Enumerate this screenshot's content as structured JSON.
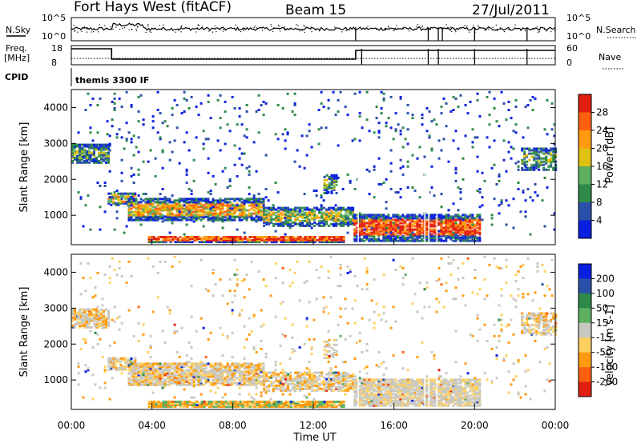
{
  "header": {
    "title": "Fort Hays West (fitACF)",
    "beam": "Beam 15",
    "date": "27/Jul/2011"
  },
  "top_panels": {
    "nsky_label": "N.Sky",
    "nsky_ticks": [
      "10^5",
      "10^0"
    ],
    "nsearch_label": "N.Search",
    "nsearch_ticks": [
      "10^5",
      "10^0"
    ],
    "freq_label": "Freq.",
    "freq_unit": "[MHz]",
    "freq_ticks": [
      "18",
      "8"
    ],
    "nave_label": "Nave",
    "nave_ticks": [
      "60",
      "0"
    ],
    "cpid_label": "CPID",
    "cpid_text": "themis 3300 IF"
  },
  "colors": {
    "power": [
      "#0a20e0",
      "#2a4fa8",
      "#2f8a4a",
      "#5fb060",
      "#e0c010",
      "#ff9a10",
      "#ff6010",
      "#e02010"
    ],
    "velocity": [
      "#0a20e0",
      "#2a4fa8",
      "#2f8a4a",
      "#5fb060",
      "#c8c8c0",
      "#ffd060",
      "#ff9a10",
      "#ff6010",
      "#e02010"
    ],
    "ground_scatter": "#c8c8c0"
  },
  "chart_data": [
    {
      "type": "heatmap",
      "name": "Power",
      "ylabel": "Slant Range [km]",
      "yticks": [
        "1000",
        "2000",
        "3000",
        "4000"
      ],
      "ylim": [
        180,
        4500
      ],
      "xlim": [
        0,
        24
      ],
      "colorbar_label": "Power [dB]",
      "colorbar_ticks": [
        "4",
        "8",
        "12",
        "16",
        "20",
        "24",
        "28"
      ],
      "colorbar_range": [
        0,
        30
      ]
    },
    {
      "type": "heatmap",
      "name": "Velocity",
      "ylabel": "Slant Range [km]",
      "yticks": [
        "1000",
        "2000",
        "3000",
        "4000"
      ],
      "ylim": [
        180,
        4500
      ],
      "xlim": [
        0,
        24
      ],
      "colorbar_label": "Velocity [m s-1]",
      "colorbar_ticks": [
        "200",
        "100",
        "50",
        "15",
        "-15",
        "-50",
        "-100",
        "-200"
      ],
      "xlabel": "Time UT",
      "xticks": [
        "00:00",
        "04:00",
        "08:00",
        "12:00",
        "16:00",
        "20:00",
        "00:00"
      ]
    }
  ]
}
